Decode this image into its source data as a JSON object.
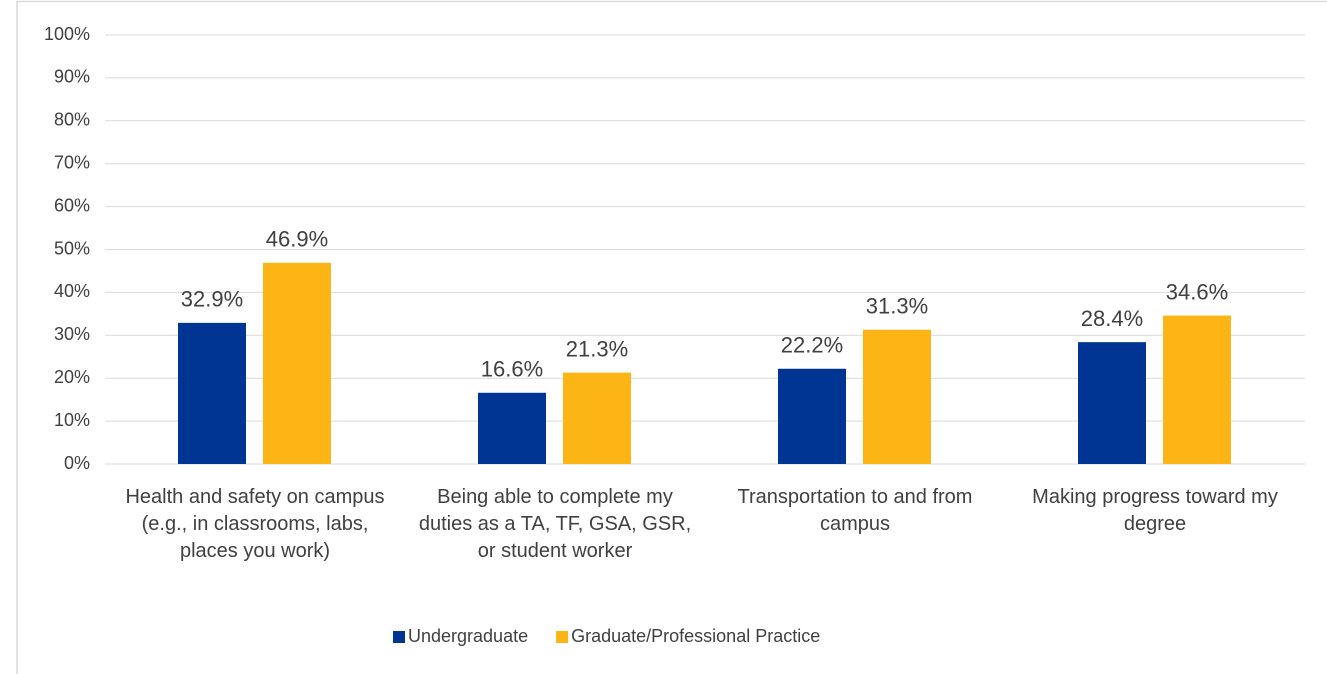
{
  "chart_data": {
    "type": "bar",
    "categories": [
      "Health and safety on campus (e.g., in classrooms, labs, places you work)",
      "Being able to complete my duties as a TA, TF, GSA, GSR, or student worker",
      "Transportation to and from campus",
      "Making progress toward my degree"
    ],
    "series": [
      {
        "name": "Undergraduate",
        "color": "#003594",
        "values": [
          32.9,
          16.6,
          22.2,
          28.4
        ],
        "value_labels": [
          "32.9%",
          "16.6%",
          "22.2%",
          "28.4%"
        ]
      },
      {
        "name": "Graduate/Professional Practice",
        "color": "#FDB515",
        "values": [
          46.9,
          21.3,
          31.3,
          34.6
        ],
        "value_labels": [
          "46.9%",
          "21.3%",
          "31.3%",
          "34.6%"
        ]
      }
    ],
    "ylim": [
      0,
      100
    ],
    "yticks": [
      {
        "value": 0,
        "label": "0%"
      },
      {
        "value": 10,
        "label": "10%"
      },
      {
        "value": 20,
        "label": "20%"
      },
      {
        "value": 30,
        "label": "30%"
      },
      {
        "value": 40,
        "label": "40%"
      },
      {
        "value": 50,
        "label": "50%"
      },
      {
        "value": 60,
        "label": "60%"
      },
      {
        "value": 70,
        "label": "70%"
      },
      {
        "value": 80,
        "label": "80%"
      },
      {
        "value": 90,
        "label": "90%"
      },
      {
        "value": 100,
        "label": "100%"
      }
    ],
    "grid": true,
    "legend": "bottom"
  }
}
